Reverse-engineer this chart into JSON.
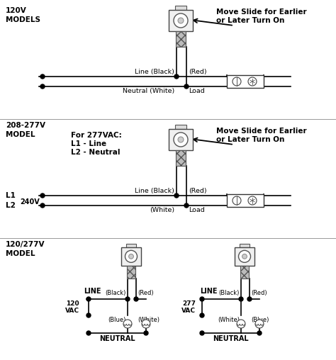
{
  "bg_color": "#ffffff",
  "line_color": "#000000",
  "section1_label": "120V\nMODELS",
  "section2_label": "208-277V\nMODEL",
  "section3_label": "120/277V\nMODEL",
  "move_slide_text1": "Move Slide for Earlier",
  "move_slide_text2": "or Later Turn On",
  "for277_line1": "For 277VAC:",
  "for277_line2": "L1 - Line",
  "for277_line3": "L2 - Neutral",
  "line_black": "Line (Black)",
  "neutral_white": "Neutral (White)",
  "red_paren": "(Red)",
  "load_text": "Load",
  "white_paren": "(White)",
  "black_paren": "(Black)",
  "blue_paren": "(Blue)",
  "l1": "L1",
  "l2": "L2",
  "240v": "240V",
  "line_label": "LINE",
  "neutral_label": "NEUTRAL",
  "120vac": "120\nVAC",
  "277vac": "277\nVAC"
}
